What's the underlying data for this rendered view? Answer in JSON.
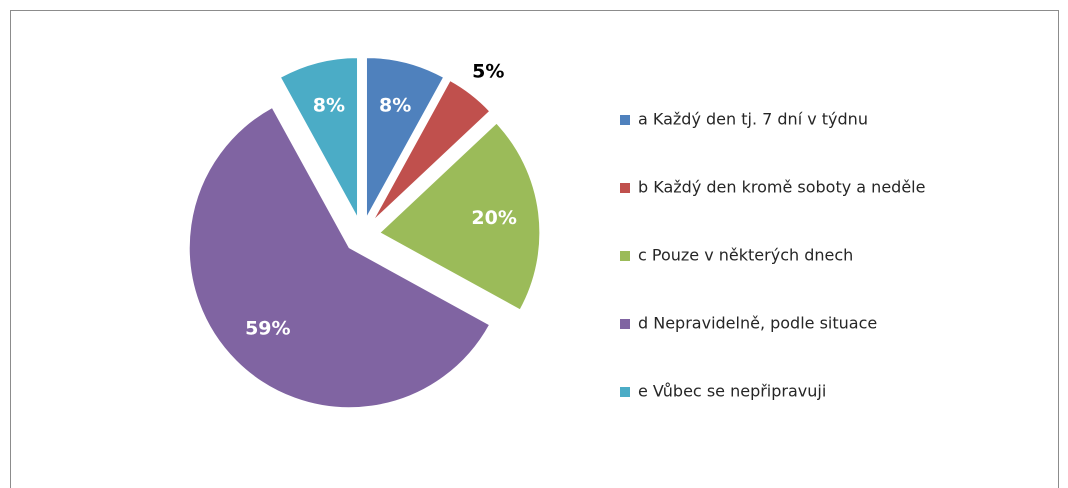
{
  "chart_data": {
    "type": "pie",
    "categories": [
      "a Každý den tj. 7 dní v týdnu",
      "b Každý den kromě soboty a neděle",
      "c Pouze v některých dnech",
      "d Nepravidelně, podle situace",
      "e Vůbec se nepřipravuji"
    ],
    "values": [
      8,
      5,
      20,
      59,
      8
    ],
    "value_labels": [
      "8%",
      "5%",
      "20%",
      "59%",
      "8%"
    ],
    "colors": [
      "#4f81bd",
      "#c0504d",
      "#9bbb59",
      "#8064a2",
      "#4bacc6"
    ],
    "legend": "right"
  }
}
